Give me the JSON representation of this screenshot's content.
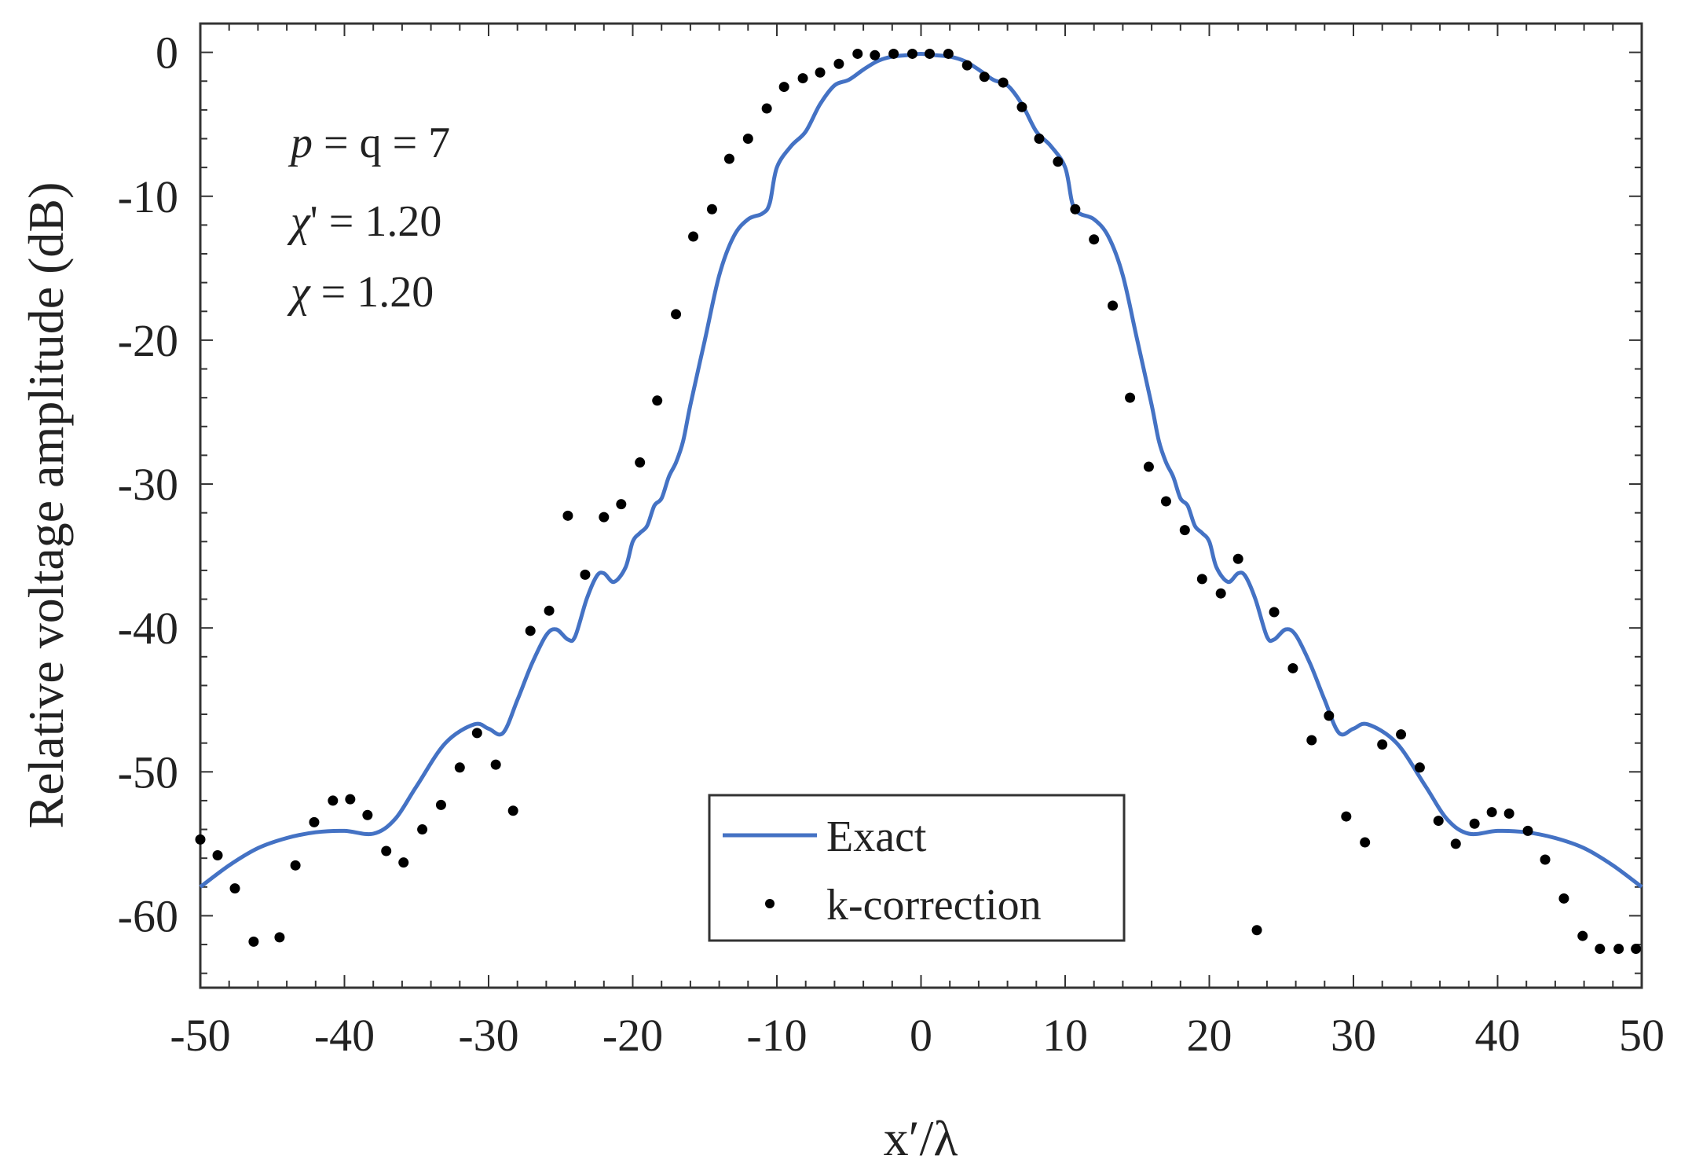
{
  "chart_data": {
    "type": "line",
    "title": "",
    "xlabel": "x′/λ",
    "ylabel": "Relative voltage amplitude (dB)",
    "xlim": [
      -50,
      50
    ],
    "ylim": [
      -65,
      2
    ],
    "xticks": [
      -50,
      -40,
      -30,
      -20,
      -10,
      0,
      10,
      20,
      30,
      40,
      50
    ],
    "yticks": [
      0,
      -10,
      -20,
      -30,
      -40,
      -50,
      -60
    ],
    "xtick_labels": [
      "-50",
      "-40",
      "-30",
      "-20",
      "-10",
      "0",
      "10",
      "20",
      "30",
      "40",
      "50"
    ],
    "ytick_labels": [
      "0",
      "-10",
      "-20",
      "-30",
      "-40",
      "-50",
      "-60"
    ],
    "grid": false,
    "legend_position": "bottom-center",
    "annotations": [
      {
        "prefix": "p",
        "suffix": " = q = 7"
      },
      {
        "prefix": "χ",
        "suffix": "' = 1.20"
      },
      {
        "prefix": "χ",
        "suffix": " = 1.20"
      }
    ],
    "series": [
      {
        "name": "Exact",
        "style": "line",
        "color": "#4472c4",
        "x": [
          -50,
          -48,
          -46,
          -44,
          -42,
          -40,
          -38,
          -36.5,
          -35,
          -33,
          -31,
          -30,
          -29,
          -28,
          -27,
          -26,
          -25.3,
          -24.5,
          -24,
          -23.2,
          -22.5,
          -22,
          -21.3,
          -20.5,
          -20,
          -19.5,
          -19,
          -18.5,
          -18,
          -17.5,
          -17,
          -16.5,
          -16,
          -15,
          -14,
          -13,
          -12,
          -11,
          -10.5,
          -10,
          -9,
          -8,
          -7,
          -6,
          -5,
          -4,
          -3,
          -2,
          -1,
          0,
          1,
          2,
          3,
          4,
          5,
          6,
          7,
          8,
          9,
          10,
          10.5,
          11,
          12,
          13,
          14,
          15,
          16,
          16.5,
          17,
          17.5,
          18,
          18.5,
          19,
          19.5,
          20,
          20.5,
          21.3,
          22,
          22.5,
          23.2,
          24,
          24.5,
          25.3,
          26,
          27,
          28,
          29,
          30,
          31,
          33,
          35,
          36.5,
          38,
          40,
          42,
          44,
          46,
          48,
          50
        ],
        "y": [
          -58,
          -56.5,
          -55.3,
          -54.6,
          -54.2,
          -54.1,
          -54.3,
          -53.3,
          -51,
          -48,
          -46.7,
          -47,
          -47.3,
          -45,
          -42.5,
          -40.5,
          -40.1,
          -40.8,
          -40.6,
          -38,
          -36.4,
          -36.2,
          -36.8,
          -35.8,
          -34,
          -33.4,
          -32.9,
          -31.5,
          -31,
          -29.5,
          -28.5,
          -27,
          -24.5,
          -20,
          -15.5,
          -12.8,
          -11.6,
          -11.2,
          -10.5,
          -8,
          -6.5,
          -5.5,
          -3.6,
          -2.3,
          -1.9,
          -1.2,
          -0.6,
          -0.3,
          -0.2,
          -0.1,
          -0.2,
          -0.3,
          -0.6,
          -1.2,
          -1.9,
          -2.3,
          -3.6,
          -5.5,
          -6.5,
          -8,
          -10.5,
          -11.2,
          -11.6,
          -12.8,
          -15.5,
          -20,
          -24.5,
          -27,
          -28.5,
          -29.5,
          -31,
          -31.5,
          -32.9,
          -33.4,
          -34,
          -35.8,
          -36.8,
          -36.2,
          -36.4,
          -38,
          -40.6,
          -40.8,
          -40.1,
          -40.5,
          -42.5,
          -45,
          -47.3,
          -47,
          -46.7,
          -48,
          -51,
          -53.3,
          -54.3,
          -54.1,
          -54.2,
          -54.6,
          -55.3,
          -56.5,
          -58
        ]
      },
      {
        "name": "k-correction",
        "style": "markers",
        "color": "#000000",
        "x": [
          -50,
          -48.8,
          -47.6,
          -46.3,
          -44.5,
          -43.4,
          -42.1,
          -40.8,
          -39.6,
          -38.4,
          -37.1,
          -35.9,
          -34.6,
          -33.3,
          -32.0,
          -30.8,
          -29.5,
          -28.3,
          -27.1,
          -25.8,
          -24.5,
          -23.3,
          -22.0,
          -20.8,
          -19.5,
          -18.3,
          -17.0,
          -15.8,
          -14.5,
          -13.3,
          -12.0,
          -10.7,
          -9.5,
          -8.2,
          -7.0,
          -5.7,
          -4.4,
          -3.2,
          -1.9,
          -0.6,
          0.6,
          1.9,
          3.2,
          4.4,
          5.7,
          7.0,
          8.2,
          9.5,
          10.7,
          12.0,
          13.3,
          14.5,
          15.8,
          17.0,
          18.3,
          19.5,
          20.8,
          22.0,
          23.3,
          24.5,
          25.8,
          27.1,
          28.3,
          29.5,
          30.8,
          32.0,
          33.3,
          34.6,
          35.9,
          37.1,
          38.4,
          39.6,
          40.8,
          42.1,
          43.3,
          44.6,
          45.9,
          47.1,
          48.4,
          49.6
        ],
        "y": [
          -54.7,
          -55.8,
          -58.1,
          -61.8,
          -61.5,
          -56.5,
          -53.5,
          -52,
          -51.9,
          -53,
          -55.5,
          -56.3,
          -54,
          -52.3,
          -49.7,
          -47.3,
          -49.5,
          -52.7,
          -40.2,
          -38.8,
          -32.2,
          -36.3,
          -32.3,
          -31.4,
          -28.5,
          -24.2,
          -18.2,
          -12.8,
          -10.9,
          -7.4,
          -6,
          -3.9,
          -2.4,
          -1.8,
          -1.4,
          -0.8,
          -0.1,
          -0.2,
          -0.1,
          -0.1,
          -0.1,
          -0.1,
          -0.9,
          -1.7,
          -2.1,
          -3.8,
          -6,
          -7.6,
          -10.9,
          -13,
          -17.6,
          -24,
          -28.8,
          -31.2,
          -33.2,
          -36.6,
          -37.6,
          -35.2,
          -61,
          -38.9,
          -42.8,
          -47.8,
          -46.1,
          -53.1,
          -54.9,
          -48.1,
          -47.4,
          -49.7,
          -53.4,
          -55,
          -53.6,
          -52.8,
          -52.9,
          -54.1,
          -56.1,
          -58.8,
          -61.4,
          -62.3,
          -62.3,
          -62.3
        ]
      }
    ]
  }
}
